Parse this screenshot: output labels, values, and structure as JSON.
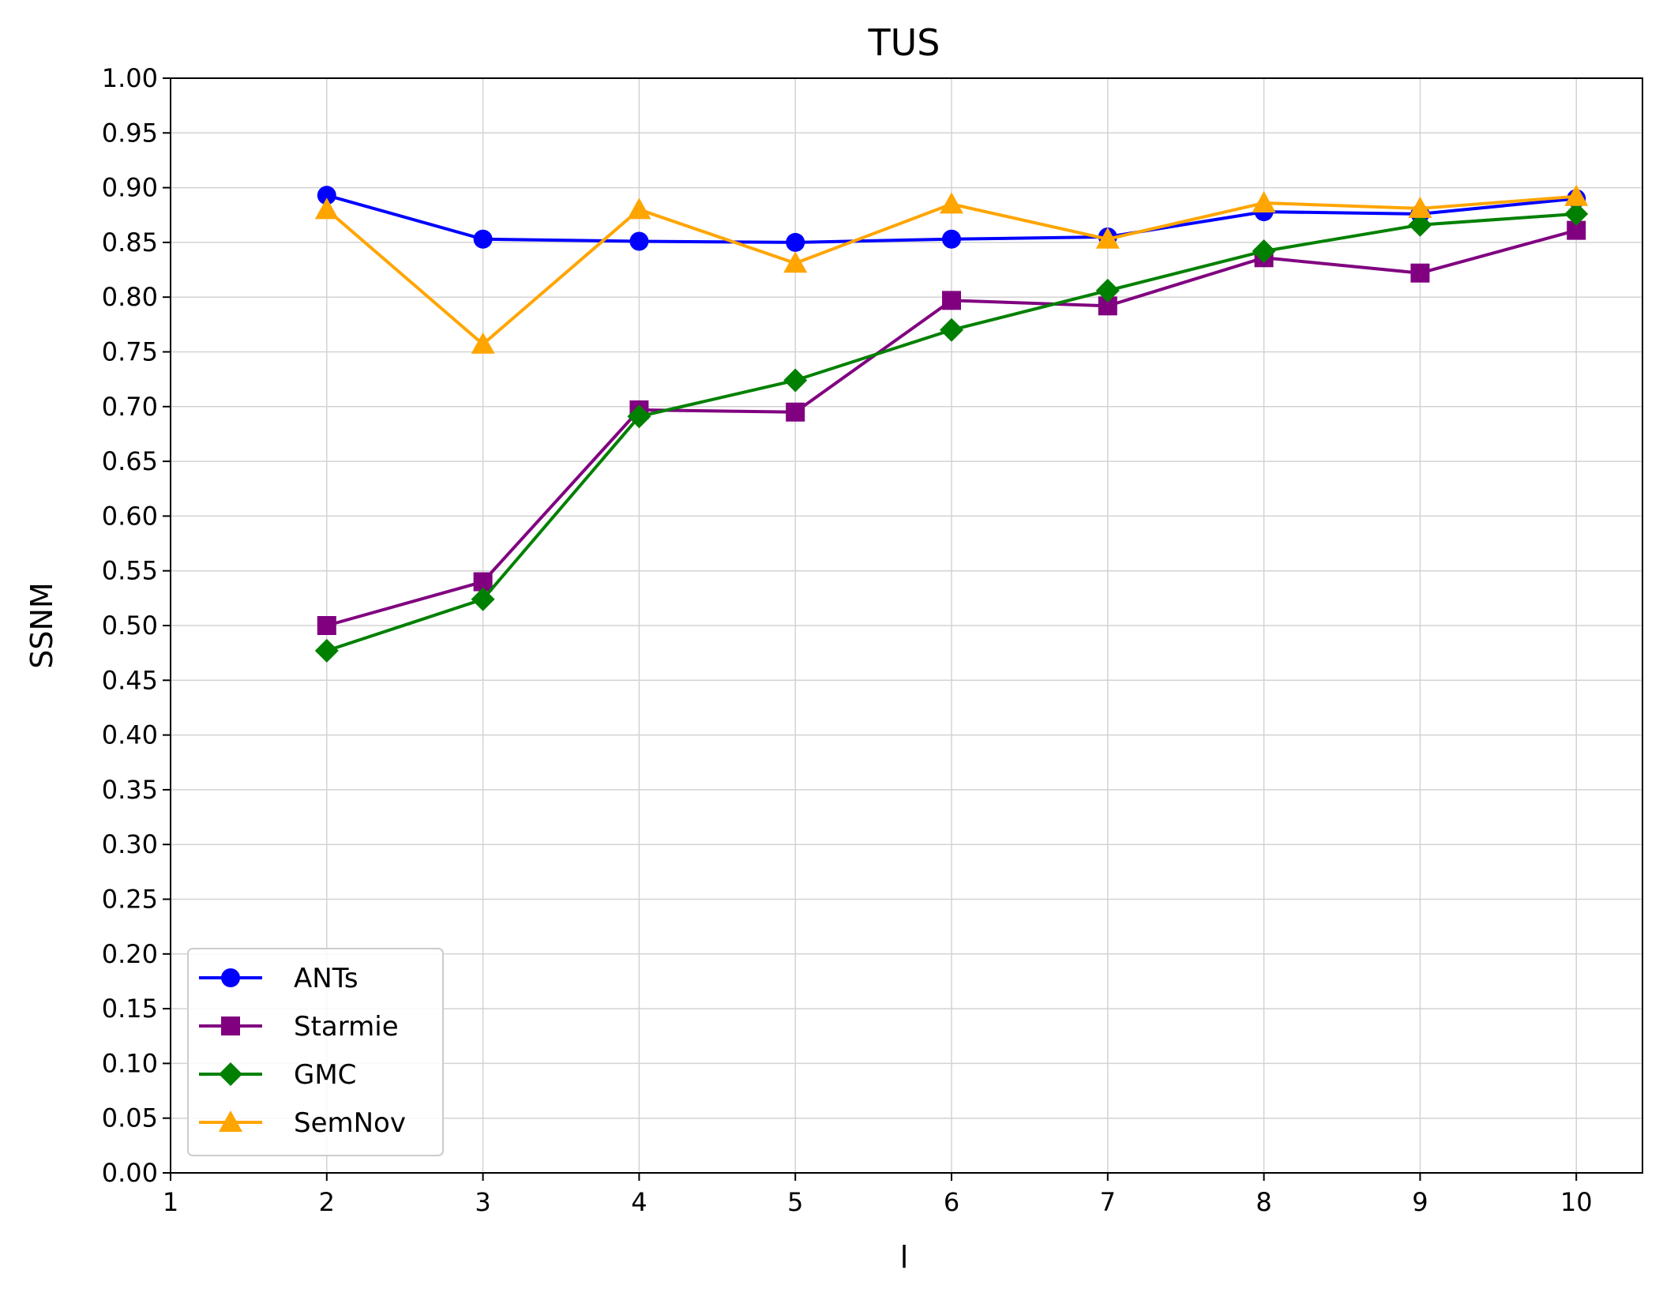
{
  "chart_data": {
    "type": "line",
    "title": "TUS",
    "xlabel": "l",
    "ylabel": "SSNM",
    "xlim": [
      1,
      10.4
    ],
    "ylim": [
      0,
      1.0
    ],
    "xticks": [
      "1",
      "2",
      "3",
      "4",
      "5",
      "6",
      "7",
      "8",
      "9",
      "10"
    ],
    "yticks": [
      "0.00",
      "0.05",
      "0.10",
      "0.15",
      "0.20",
      "0.25",
      "0.30",
      "0.35",
      "0.40",
      "0.45",
      "0.50",
      "0.55",
      "0.60",
      "0.65",
      "0.70",
      "0.75",
      "0.80",
      "0.85",
      "0.90",
      "0.95",
      "1.00"
    ],
    "grid": true,
    "legend_position": "bottom-left",
    "x": [
      2,
      3,
      4,
      5,
      6,
      7,
      8,
      9,
      10
    ],
    "series": [
      {
        "name": "ANTs",
        "color": "#0000ff",
        "marker": "circle",
        "values": [
          0.893,
          0.853,
          0.851,
          0.85,
          0.853,
          0.855,
          0.878,
          0.876,
          0.89
        ]
      },
      {
        "name": "Starmie",
        "color": "#800080",
        "marker": "square",
        "values": [
          0.5,
          0.54,
          0.697,
          0.695,
          0.797,
          0.792,
          0.836,
          0.822,
          0.861
        ]
      },
      {
        "name": "GMC",
        "color": "#008000",
        "marker": "diamond",
        "values": [
          0.477,
          0.524,
          0.691,
          0.724,
          0.77,
          0.806,
          0.842,
          0.866,
          0.876
        ]
      },
      {
        "name": "SemNov",
        "color": "#ffa500",
        "marker": "triangle",
        "values": [
          0.88,
          0.757,
          0.88,
          0.831,
          0.885,
          0.853,
          0.886,
          0.881,
          0.892
        ]
      }
    ]
  }
}
